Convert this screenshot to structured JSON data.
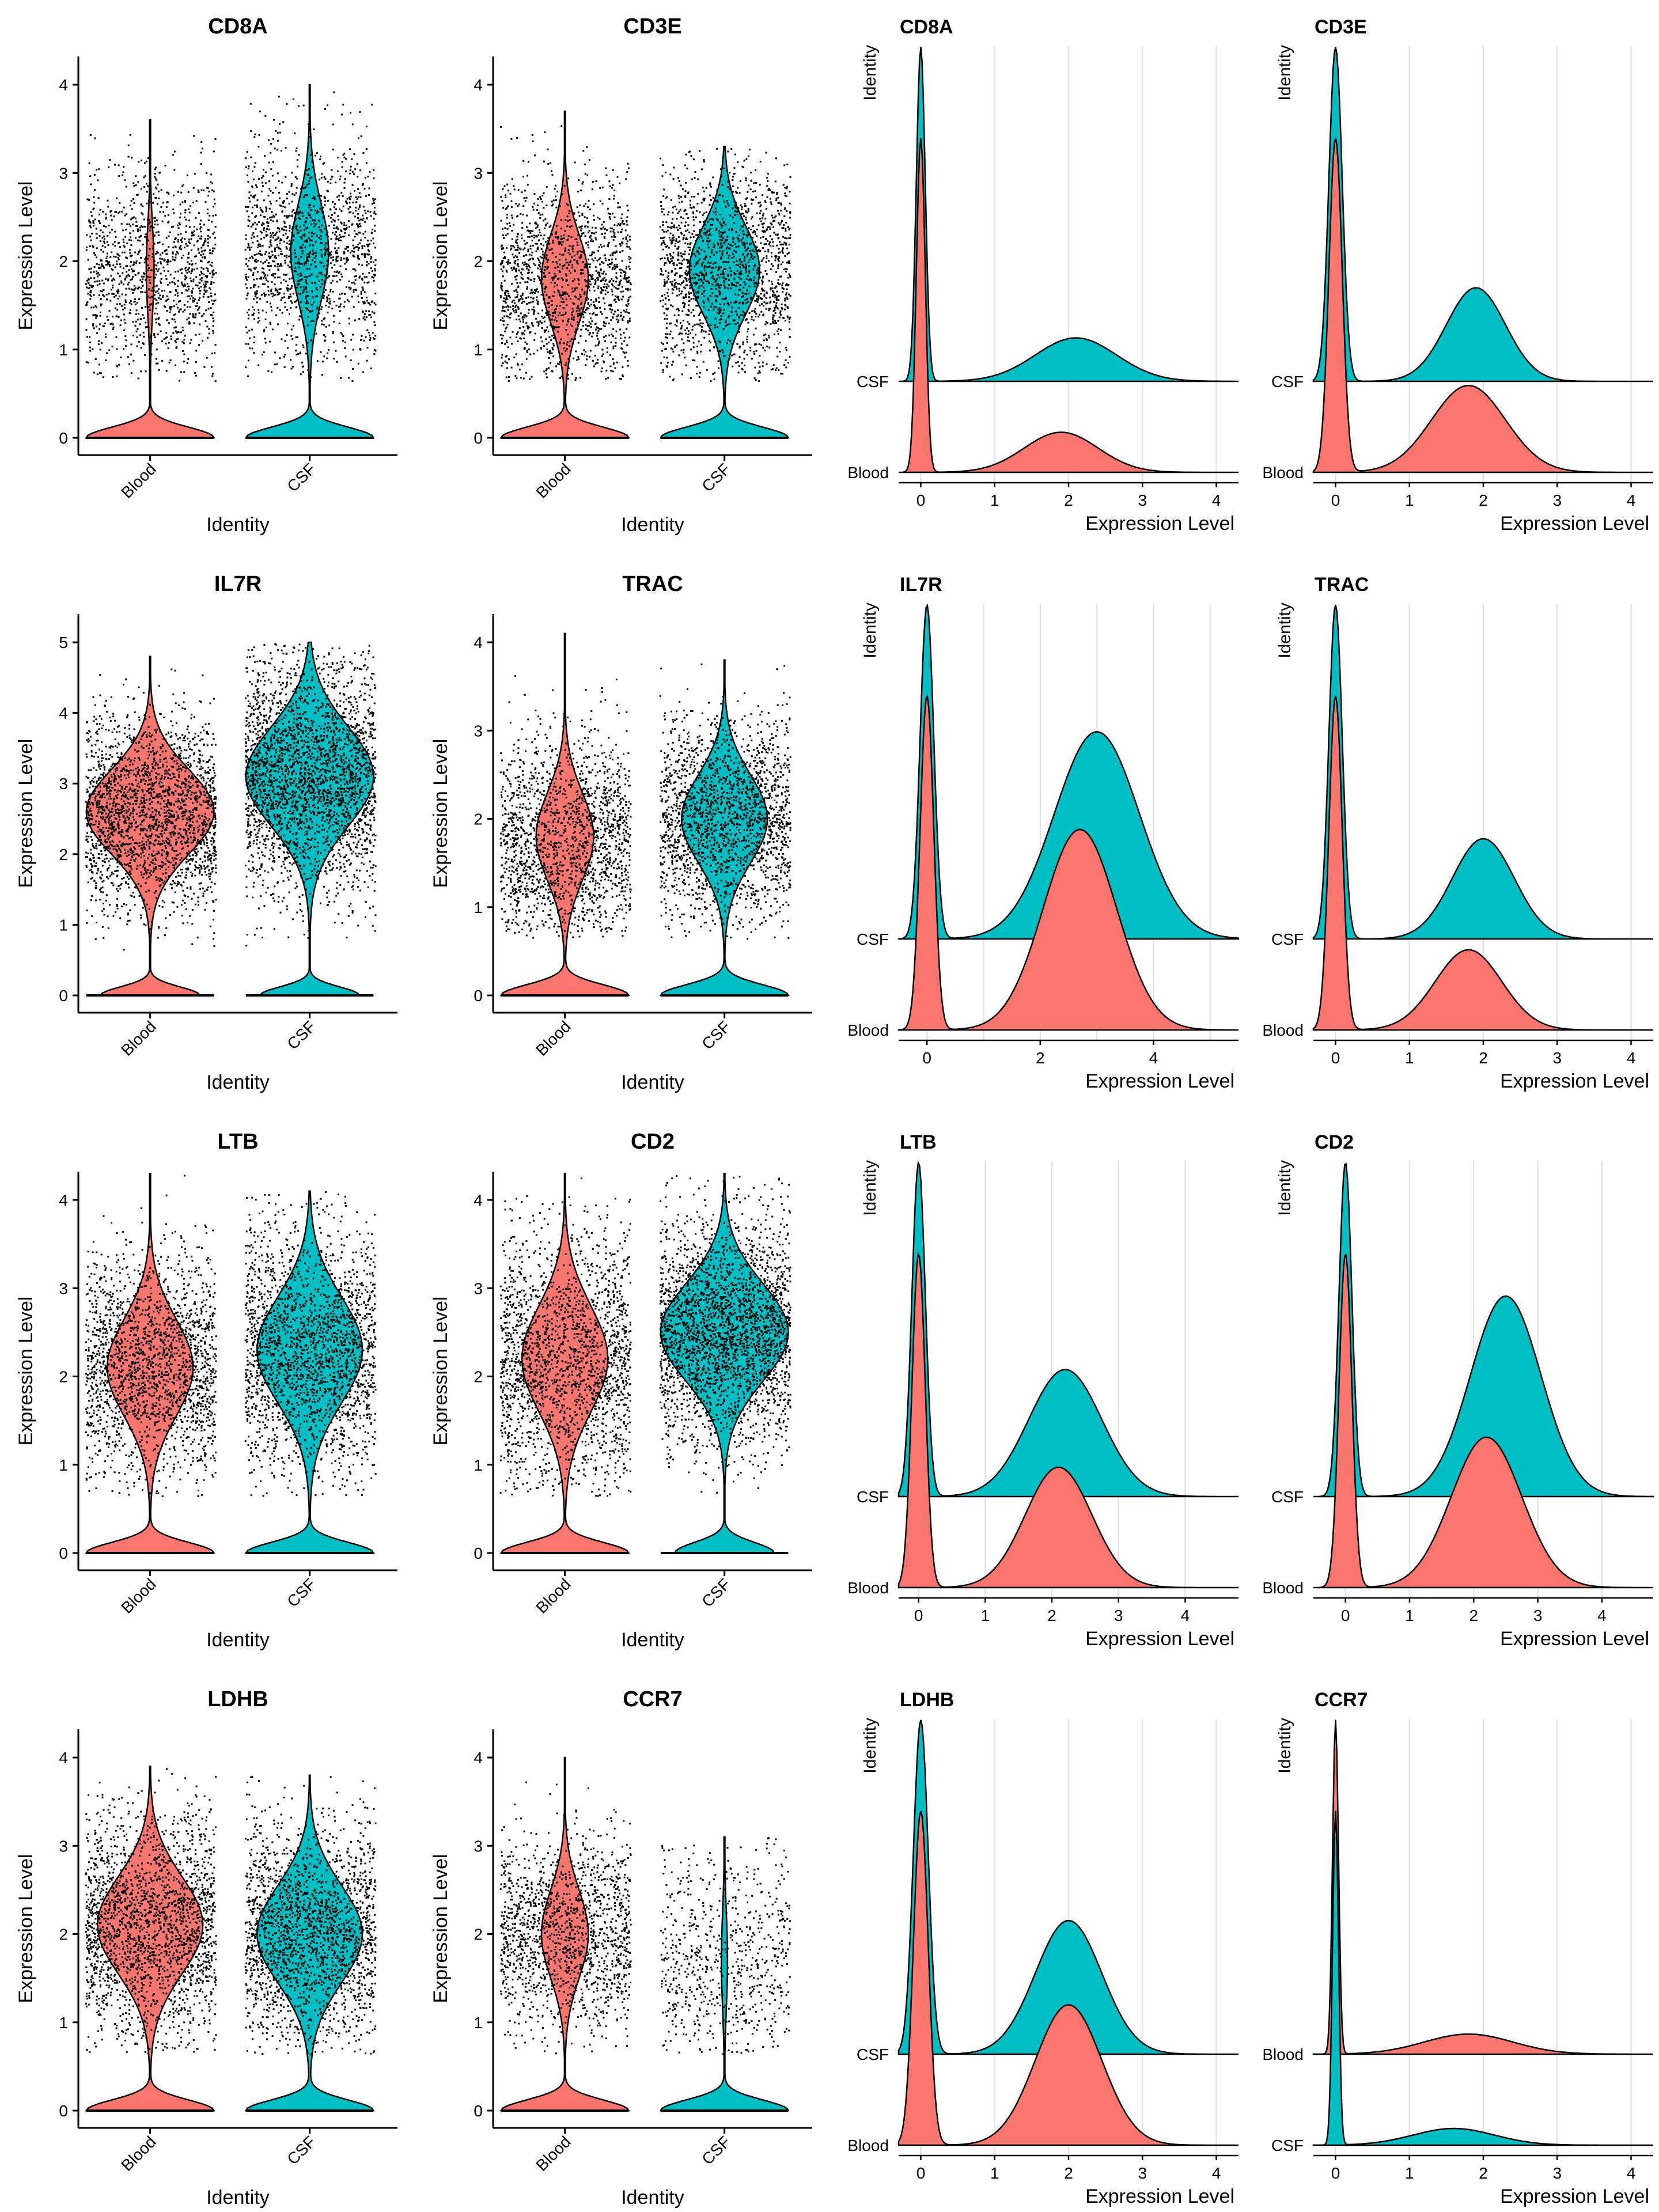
{
  "colors": {
    "blood": "#F8766D",
    "csf": "#00BFC4",
    "dot": "#000000",
    "grid": "#e3e3e3",
    "axis": "#000000",
    "outline": "#000000"
  },
  "labels": {
    "violin_ylabel": "Expression Level",
    "violin_xlabel": "Identity",
    "ridge_ylabel": "Identity",
    "ridge_xlabel": "Expression Level"
  },
  "chart_data": [
    {
      "type": "violin",
      "title": "CD8A",
      "groups": [
        "Blood",
        "CSF"
      ],
      "ylim": [
        0,
        4
      ],
      "yticks": [
        0,
        1,
        2,
        3,
        4
      ],
      "series": [
        {
          "name": "Blood",
          "fraction_zero": 0.9,
          "mode": 1.9,
          "sd": 0.5,
          "max": 3.6,
          "n_points": 1200
        },
        {
          "name": "CSF",
          "fraction_zero": 0.65,
          "mode": 2.1,
          "sd": 0.55,
          "max": 4.0,
          "n_points": 1400
        }
      ]
    },
    {
      "type": "violin",
      "title": "CD3E",
      "groups": [
        "Blood",
        "CSF"
      ],
      "ylim": [
        0,
        4
      ],
      "yticks": [
        0,
        1,
        2,
        3,
        4
      ],
      "series": [
        {
          "name": "Blood",
          "fraction_zero": 0.6,
          "mode": 1.8,
          "sd": 0.5,
          "max": 3.7,
          "n_points": 1500
        },
        {
          "name": "CSF",
          "fraction_zero": 0.5,
          "mode": 1.9,
          "sd": 0.5,
          "max": 3.3,
          "n_points": 1600
        }
      ]
    },
    {
      "type": "ridge",
      "title": "CD8A",
      "groups_top_to_bottom": [
        "CSF",
        "Blood"
      ],
      "xlim": [
        -0.3,
        4.3
      ],
      "xticks": [
        0,
        1,
        2,
        3,
        4
      ],
      "series": [
        {
          "name": "CSF",
          "zero_weight": 1.0,
          "zero_sd": 0.06,
          "pos_weight": 0.13,
          "pos_mean": 2.1,
          "pos_sd": 0.55
        },
        {
          "name": "Blood",
          "zero_weight": 1.0,
          "zero_sd": 0.06,
          "pos_weight": 0.12,
          "pos_mean": 1.9,
          "pos_sd": 0.5
        }
      ]
    },
    {
      "type": "ridge",
      "title": "CD3E",
      "groups_top_to_bottom": [
        "CSF",
        "Blood"
      ],
      "xlim": [
        -0.3,
        4.3
      ],
      "xticks": [
        0,
        1,
        2,
        3,
        4
      ],
      "series": [
        {
          "name": "CSF",
          "zero_weight": 1.0,
          "zero_sd": 0.09,
          "pos_weight": 0.28,
          "pos_mean": 1.9,
          "pos_sd": 0.4
        },
        {
          "name": "Blood",
          "zero_weight": 1.0,
          "zero_sd": 0.09,
          "pos_weight": 0.26,
          "pos_mean": 1.8,
          "pos_sd": 0.5
        }
      ]
    },
    {
      "type": "violin",
      "title": "IL7R",
      "groups": [
        "Blood",
        "CSF"
      ],
      "ylim": [
        0,
        5
      ],
      "yticks": [
        0,
        1,
        2,
        3,
        4,
        5
      ],
      "series": [
        {
          "name": "Blood",
          "fraction_zero": 0.3,
          "mode": 2.6,
          "sd": 0.6,
          "max": 4.8,
          "n_points": 2200
        },
        {
          "name": "CSF",
          "fraction_zero": 0.3,
          "mode": 3.1,
          "sd": 0.7,
          "max": 5.0,
          "n_points": 2600
        }
      ]
    },
    {
      "type": "violin",
      "title": "TRAC",
      "groups": [
        "Blood",
        "CSF"
      ],
      "ylim": [
        0,
        4
      ],
      "yticks": [
        0,
        1,
        2,
        3,
        4
      ],
      "series": [
        {
          "name": "Blood",
          "fraction_zero": 0.55,
          "mode": 1.8,
          "sd": 0.5,
          "max": 4.1,
          "n_points": 1700
        },
        {
          "name": "CSF",
          "fraction_zero": 0.45,
          "mode": 2.0,
          "sd": 0.5,
          "max": 3.8,
          "n_points": 1900
        }
      ]
    },
    {
      "type": "ridge",
      "title": "IL7R",
      "groups_top_to_bottom": [
        "CSF",
        "Blood"
      ],
      "xlim": [
        -0.5,
        5.5
      ],
      "xticks": [
        0,
        2,
        4
      ],
      "series": [
        {
          "name": "CSF",
          "zero_weight": 1.0,
          "zero_sd": 0.12,
          "pos_weight": 0.62,
          "pos_mean": 3.0,
          "pos_sd": 0.75
        },
        {
          "name": "Blood",
          "zero_weight": 1.0,
          "zero_sd": 0.12,
          "pos_weight": 0.6,
          "pos_mean": 2.7,
          "pos_sd": 0.65
        }
      ]
    },
    {
      "type": "ridge",
      "title": "TRAC",
      "groups_top_to_bottom": [
        "CSF",
        "Blood"
      ],
      "xlim": [
        -0.3,
        4.3
      ],
      "xticks": [
        0,
        1,
        2,
        3,
        4
      ],
      "series": [
        {
          "name": "CSF",
          "zero_weight": 1.0,
          "zero_sd": 0.09,
          "pos_weight": 0.3,
          "pos_mean": 2.0,
          "pos_sd": 0.42
        },
        {
          "name": "Blood",
          "zero_weight": 1.0,
          "zero_sd": 0.09,
          "pos_weight": 0.24,
          "pos_mean": 1.8,
          "pos_sd": 0.45
        }
      ]
    },
    {
      "type": "violin",
      "title": "LTB",
      "groups": [
        "Blood",
        "CSF"
      ],
      "ylim": [
        0,
        4
      ],
      "yticks": [
        0,
        1,
        2,
        3,
        4
      ],
      "series": [
        {
          "name": "Blood",
          "fraction_zero": 0.45,
          "mode": 2.1,
          "sd": 0.55,
          "max": 4.3,
          "n_points": 2000
        },
        {
          "name": "CSF",
          "fraction_zero": 0.4,
          "mode": 2.3,
          "sd": 0.6,
          "max": 4.1,
          "n_points": 2100
        }
      ]
    },
    {
      "type": "violin",
      "title": "CD2",
      "groups": [
        "Blood",
        "CSF"
      ],
      "ylim": [
        0,
        4
      ],
      "yticks": [
        0,
        1,
        2,
        3,
        4
      ],
      "series": [
        {
          "name": "Blood",
          "fraction_zero": 0.45,
          "mode": 2.2,
          "sd": 0.6,
          "max": 4.3,
          "n_points": 2000
        },
        {
          "name": "CSF",
          "fraction_zero": 0.3,
          "mode": 2.5,
          "sd": 0.55,
          "max": 4.3,
          "n_points": 2600
        }
      ]
    },
    {
      "type": "ridge",
      "title": "LTB",
      "groups_top_to_bottom": [
        "CSF",
        "Blood"
      ],
      "xlim": [
        -0.3,
        4.8
      ],
      "xticks": [
        0,
        1,
        2,
        3,
        4
      ],
      "series": [
        {
          "name": "CSF",
          "zero_weight": 1.0,
          "zero_sd": 0.1,
          "pos_weight": 0.38,
          "pos_mean": 2.2,
          "pos_sd": 0.55
        },
        {
          "name": "Blood",
          "zero_weight": 1.0,
          "zero_sd": 0.1,
          "pos_weight": 0.36,
          "pos_mean": 2.1,
          "pos_sd": 0.5
        }
      ]
    },
    {
      "type": "ridge",
      "title": "CD2",
      "groups_top_to_bottom": [
        "CSF",
        "Blood"
      ],
      "xlim": [
        -0.5,
        4.8
      ],
      "xticks": [
        0,
        1,
        2,
        3,
        4
      ],
      "series": [
        {
          "name": "CSF",
          "zero_weight": 1.0,
          "zero_sd": 0.1,
          "pos_weight": 0.6,
          "pos_mean": 2.5,
          "pos_sd": 0.55
        },
        {
          "name": "Blood",
          "zero_weight": 1.0,
          "zero_sd": 0.1,
          "pos_weight": 0.45,
          "pos_mean": 2.2,
          "pos_sd": 0.55
        }
      ]
    },
    {
      "type": "violin",
      "title": "LDHB",
      "groups": [
        "Blood",
        "CSF"
      ],
      "ylim": [
        0,
        4
      ],
      "yticks": [
        0,
        1,
        2,
        3,
        4
      ],
      "series": [
        {
          "name": "Blood",
          "fraction_zero": 0.4,
          "mode": 2.1,
          "sd": 0.55,
          "max": 3.9,
          "n_points": 2100
        },
        {
          "name": "CSF",
          "fraction_zero": 0.4,
          "mode": 2.0,
          "sd": 0.55,
          "max": 3.8,
          "n_points": 2000
        }
      ]
    },
    {
      "type": "violin",
      "title": "CCR7",
      "groups": [
        "Blood",
        "CSF"
      ],
      "ylim": [
        0,
        4
      ],
      "yticks": [
        0,
        1,
        2,
        3,
        4
      ],
      "series": [
        {
          "name": "Blood",
          "fraction_zero": 0.6,
          "mode": 2.0,
          "sd": 0.5,
          "max": 4.0,
          "n_points": 1500
        },
        {
          "name": "CSF",
          "fraction_zero": 0.92,
          "mode": 1.7,
          "sd": 0.55,
          "max": 3.1,
          "n_points": 700
        }
      ]
    },
    {
      "type": "ridge",
      "title": "LDHB",
      "groups_top_to_bottom": [
        "CSF",
        "Blood"
      ],
      "xlim": [
        -0.3,
        4.3
      ],
      "xticks": [
        0,
        1,
        2,
        3,
        4
      ],
      "series": [
        {
          "name": "CSF",
          "zero_weight": 1.0,
          "zero_sd": 0.1,
          "pos_weight": 0.4,
          "pos_mean": 2.0,
          "pos_sd": 0.45
        },
        {
          "name": "Blood",
          "zero_weight": 1.0,
          "zero_sd": 0.1,
          "pos_weight": 0.42,
          "pos_mean": 2.0,
          "pos_sd": 0.45
        }
      ]
    },
    {
      "type": "ridge",
      "title": "CCR7",
      "groups_top_to_bottom": [
        "Blood",
        "CSF"
      ],
      "xlim": [
        -0.3,
        4.3
      ],
      "xticks": [
        0,
        1,
        2,
        3,
        4
      ],
      "series": [
        {
          "name": "Blood",
          "zero_weight": 1.0,
          "zero_sd": 0.04,
          "pos_weight": 0.06,
          "pos_mean": 1.8,
          "pos_sd": 0.6
        },
        {
          "name": "CSF",
          "zero_weight": 1.0,
          "zero_sd": 0.04,
          "pos_weight": 0.05,
          "pos_mean": 1.6,
          "pos_sd": 0.55
        }
      ]
    }
  ]
}
